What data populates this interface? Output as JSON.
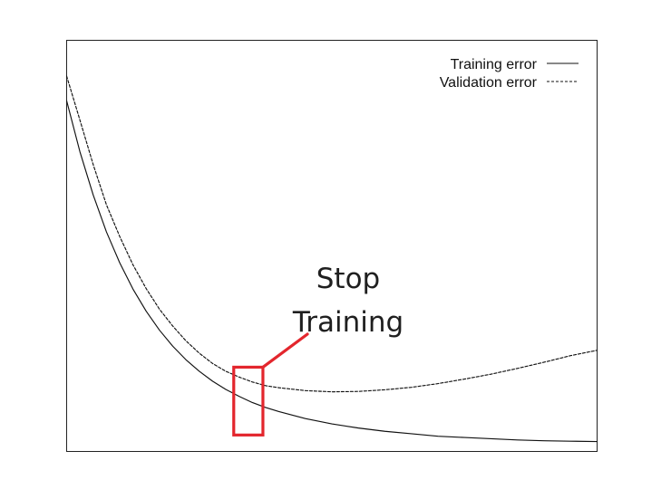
{
  "chart_data": {
    "type": "line",
    "title": "",
    "xlabel": "",
    "ylabel": "",
    "grid": false,
    "legend": "top-right",
    "xlim": [
      0,
      100
    ],
    "ylim": [
      0,
      100
    ],
    "series": [
      {
        "name": "Training error",
        "line_style": "solid",
        "color": "#111111",
        "x": [
          0,
          2.5,
          5,
          7.5,
          10,
          12.5,
          15,
          17.5,
          20,
          22.5,
          25,
          27.5,
          30,
          32.5,
          35,
          37.5,
          40,
          45,
          50,
          55,
          60,
          65,
          70,
          75,
          80,
          85,
          90,
          95,
          100
        ],
        "y": [
          85.3,
          72.9,
          62.4,
          53.4,
          45.9,
          39.5,
          34.1,
          29.5,
          25.6,
          22.3,
          19.5,
          17.1,
          15.1,
          13.4,
          11.9,
          10.7,
          9.7,
          8.0,
          6.7,
          5.7,
          4.9,
          4.3,
          3.7,
          3.4,
          3.1,
          2.8,
          2.6,
          2.5,
          2.4
        ]
      },
      {
        "name": "Validation error",
        "line_style": "dashed",
        "color": "#111111",
        "x": [
          0,
          2.5,
          5,
          7.5,
          10,
          12.5,
          15,
          17.5,
          20,
          22.5,
          25,
          27.5,
          30,
          32.5,
          35,
          37.5,
          40,
          45,
          50,
          55,
          60,
          65,
          70,
          75,
          80,
          85,
          90,
          95,
          100
        ],
        "y": [
          91.3,
          80.6,
          69.8,
          60.0,
          52.3,
          45.4,
          39.6,
          34.6,
          30.5,
          26.9,
          23.9,
          21.4,
          19.5,
          18.1,
          16.9,
          16.0,
          15.5,
          14.8,
          14.5,
          14.6,
          15.0,
          15.6,
          16.5,
          17.6,
          18.8,
          20.2,
          21.7,
          23.3,
          24.6
        ]
      }
    ],
    "annotations": [
      {
        "text_lines": [
          "Stop",
          "Training"
        ],
        "color": "#1f1f1f",
        "highlight_color": "#e3262d",
        "x_range": [
          31.5,
          37
        ],
        "y_range": [
          4,
          20.5
        ]
      }
    ]
  }
}
